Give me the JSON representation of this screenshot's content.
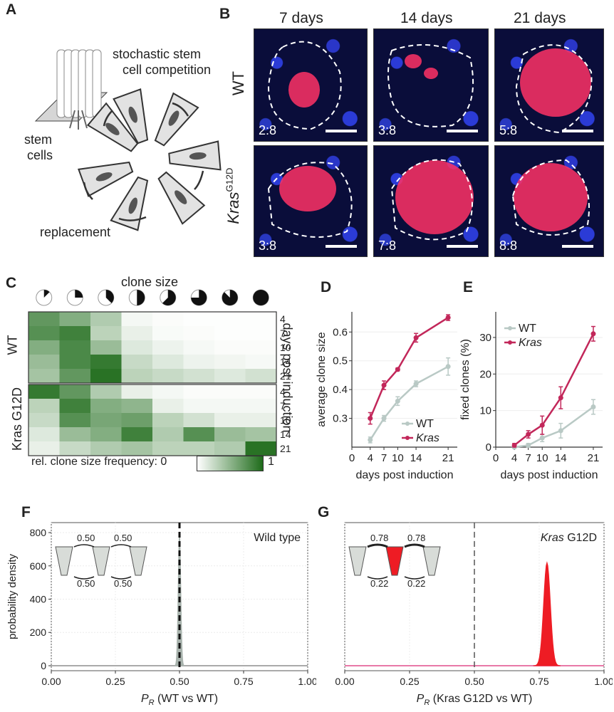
{
  "panels": {
    "A": "A",
    "B": "B",
    "C": "C",
    "D": "D",
    "E": "E",
    "F": "F",
    "G": "G"
  },
  "panelA": {
    "title_line1": "stochastic stem",
    "title_line2": "cell competition",
    "stem_line1": "stem",
    "stem_line2": "cells",
    "replacement": "replacement"
  },
  "panelB": {
    "columns": [
      "7 days",
      "14 days",
      "21 days"
    ],
    "row_wt": "WT",
    "row_kras": "Kras",
    "row_kras_sup": "G12D",
    "ratios_wt": [
      "2:8",
      "3:8",
      "5:8"
    ],
    "ratios_kras": [
      "3:8",
      "7:8",
      "8:8"
    ]
  },
  "panelC": {
    "clone_size_label": "clone size",
    "row_group_wt": "WT",
    "row_group_kras": "Kras G12D",
    "right_axis_label": "days post induction",
    "days": [
      "4",
      "7",
      "10",
      "14",
      "21"
    ],
    "colorbar_label": "rel. clone size frequency: 0",
    "colorbar_max": "1",
    "clone_fractions": [
      0.125,
      0.25,
      0.375,
      0.5,
      0.625,
      0.75,
      0.875,
      1.0
    ],
    "heat_wt": [
      [
        0.7,
        0.55,
        0.35,
        0.05,
        0.02,
        0.01,
        0.01,
        0.01
      ],
      [
        0.75,
        0.85,
        0.3,
        0.1,
        0.03,
        0.02,
        0.01,
        0.01
      ],
      [
        0.55,
        0.8,
        0.45,
        0.15,
        0.08,
        0.04,
        0.02,
        0.02
      ],
      [
        0.45,
        0.8,
        0.9,
        0.25,
        0.15,
        0.08,
        0.06,
        0.04
      ],
      [
        0.4,
        0.7,
        0.95,
        0.3,
        0.25,
        0.2,
        0.15,
        0.2
      ]
    ],
    "heat_kras": [
      [
        0.9,
        0.7,
        0.35,
        0.1,
        0.05,
        0.02,
        0.02,
        0.02
      ],
      [
        0.3,
        0.85,
        0.55,
        0.5,
        0.1,
        0.05,
        0.05,
        0.05
      ],
      [
        0.25,
        0.75,
        0.6,
        0.65,
        0.3,
        0.2,
        0.1,
        0.1
      ],
      [
        0.15,
        0.45,
        0.55,
        0.85,
        0.35,
        0.75,
        0.45,
        0.4
      ],
      [
        0.1,
        0.25,
        0.35,
        0.4,
        0.3,
        0.3,
        0.35,
        0.95
      ]
    ]
  },
  "colors": {
    "wt": "#b9c9c5",
    "kras": "#c2275a",
    "heat_max": "#1e6b1a",
    "f_fill": "#a8b3ad",
    "g_fill": "#ee1c24",
    "g_baseline": "#e879a8"
  },
  "chart_data": [
    {
      "type": "line",
      "panel": "D",
      "xlabel": "days post induction",
      "ylabel": "average clone size",
      "x_ticks": [
        "0",
        "4",
        "7",
        "10",
        "14",
        "21"
      ],
      "y_ticks": [
        "0.3",
        "0.4",
        "0.5",
        "0.6"
      ],
      "xlim": [
        0,
        23
      ],
      "ylim": [
        0.2,
        0.67
      ],
      "series": [
        {
          "name": "WT",
          "x": [
            4,
            7,
            10,
            14,
            21
          ],
          "y": [
            0.225,
            0.3,
            0.36,
            0.42,
            0.48
          ],
          "err": [
            0.01,
            0.01,
            0.015,
            0.01,
            0.03
          ]
        },
        {
          "name": "Kras",
          "x": [
            4,
            7,
            10,
            14,
            21
          ],
          "y": [
            0.3,
            0.415,
            0.47,
            0.58,
            0.65
          ],
          "err": [
            0.02,
            0.015,
            0.005,
            0.015,
            0.01
          ]
        }
      ],
      "legend": "bottom-right"
    },
    {
      "type": "line",
      "panel": "E",
      "xlabel": "days post induction",
      "ylabel": "fixed clones (%)",
      "x_ticks": [
        "0",
        "4",
        "7",
        "10",
        "14",
        "21"
      ],
      "y_ticks": [
        "0",
        "10",
        "20",
        "30"
      ],
      "xlim": [
        0,
        23
      ],
      "ylim": [
        0,
        37
      ],
      "series": [
        {
          "name": "WT",
          "x": [
            4,
            7,
            10,
            14,
            21
          ],
          "y": [
            0,
            0.5,
            2.5,
            4.5,
            11
          ],
          "err": [
            0.3,
            0.5,
            1,
            2,
            2
          ]
        },
        {
          "name": "Kras",
          "x": [
            4,
            7,
            10,
            14,
            21
          ],
          "y": [
            0.5,
            3.5,
            6,
            13.5,
            31
          ],
          "err": [
            0.5,
            1,
            2.5,
            3,
            2
          ]
        }
      ],
      "legend": "top-left"
    },
    {
      "type": "area",
      "panel": "F",
      "xlabel": "P_R (WT vs WT)",
      "ylabel": "probability density",
      "annotation": "Wild type",
      "x_ticks": [
        "0.00",
        "0.25",
        "0.50",
        "0.75",
        "1.00"
      ],
      "y_ticks": [
        "0",
        "200",
        "400",
        "600",
        "800"
      ],
      "xlim": [
        0,
        1
      ],
      "ylim": [
        -30,
        860
      ],
      "distribution": {
        "mean": 0.5,
        "sd": 0.005,
        "peak": 800
      },
      "dashed_line_x": 0.5,
      "transition_labels": [
        "0.50",
        "0.50",
        "0.50",
        "0.50"
      ]
    },
    {
      "type": "area",
      "panel": "G",
      "xlabel": "P_R (Kras G12D vs WT)",
      "ylabel": "",
      "annotation": "Kras G12D",
      "x_ticks": [
        "0.00",
        "0.25",
        "0.50",
        "0.75",
        "1.00"
      ],
      "xlim": [
        0,
        1
      ],
      "ylim": [
        -30,
        860
      ],
      "distribution": {
        "mean": 0.78,
        "sd": 0.013,
        "peak": 620
      },
      "dashed_line_x": 0.5,
      "transition_labels": [
        "0.78",
        "0.78",
        "0.22",
        "0.22"
      ]
    }
  ]
}
